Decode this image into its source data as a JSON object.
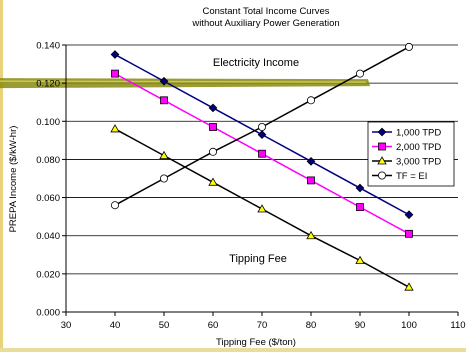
{
  "chart_data": {
    "type": "line",
    "title": "Constant Total Income Curves",
    "subtitle": "without Auxiliary Power Generation",
    "xlabel": "Tipping Fee ($/ton)",
    "ylabel": "PREPA Income ($/kW-hr)",
    "xlim": [
      30,
      110
    ],
    "ylim": [
      0,
      0.14
    ],
    "x_ticks": [
      "30",
      "40",
      "50",
      "60",
      "70",
      "80",
      "90",
      "100",
      "110"
    ],
    "y_ticks": [
      "0.000",
      "0.020",
      "0.040",
      "0.060",
      "0.080",
      "0.100",
      "0.120",
      "0.140"
    ],
    "grid": "horizontal",
    "legend_position": "right",
    "annotations": [
      "Electricity Income",
      "Tipping Fee"
    ],
    "highlight_y": 0.12,
    "series": [
      {
        "name": "1,000 TPD",
        "marker": "diamond",
        "color": "#000080",
        "marker_fill": "#000080",
        "x": [
          40,
          50,
          60,
          70,
          80,
          90,
          100
        ],
        "y": [
          0.135,
          0.121,
          0.107,
          0.093,
          0.079,
          0.065,
          0.051
        ]
      },
      {
        "name": "2,000 TPD",
        "marker": "square",
        "color": "#ff00ff",
        "marker_fill": "#ff00ff",
        "x": [
          40,
          50,
          60,
          70,
          80,
          90,
          100
        ],
        "y": [
          0.125,
          0.111,
          0.097,
          0.083,
          0.069,
          0.055,
          0.041
        ]
      },
      {
        "name": "3,000 TPD",
        "marker": "triangle",
        "color": "#000000",
        "marker_fill": "#ffff00",
        "x": [
          40,
          50,
          60,
          70,
          80,
          90,
          100
        ],
        "y": [
          0.096,
          0.082,
          0.068,
          0.054,
          0.04,
          0.027,
          0.013
        ]
      },
      {
        "name": "TF = EI",
        "marker": "circle",
        "color": "#000000",
        "marker_fill": "#ffffff",
        "x": [
          40,
          50,
          60,
          70,
          80,
          90,
          100
        ],
        "y": [
          0.056,
          0.07,
          0.084,
          0.097,
          0.111,
          0.125,
          0.139
        ]
      }
    ]
  }
}
